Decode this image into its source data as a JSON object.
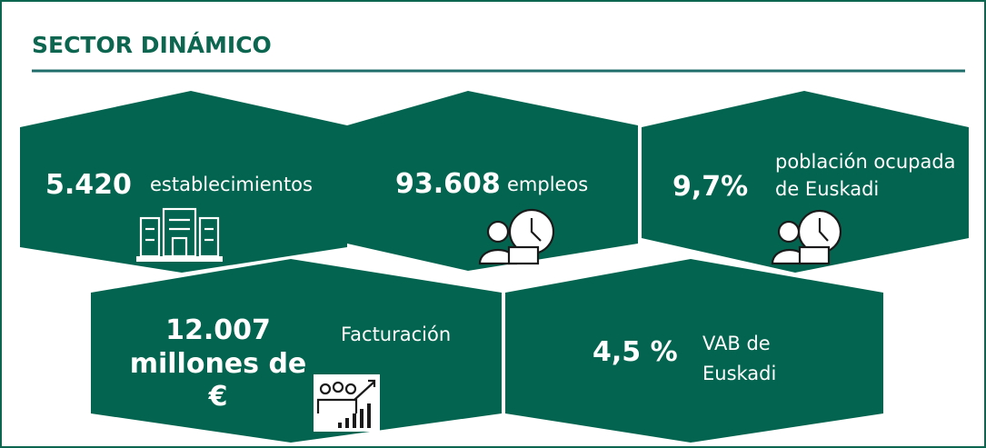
{
  "header": {
    "title": "SECTOR DINÁMICO"
  },
  "tiles": [
    {
      "value": [
        "5.420"
      ],
      "label": [
        "establecimientos"
      ]
    },
    {
      "value": [
        "93.608"
      ],
      "label": [
        "empleos"
      ]
    },
    {
      "value": [
        "9,7%"
      ],
      "label": [
        "población ocupada",
        "de Euskadi"
      ]
    },
    {
      "value": [
        "12.007",
        "millones de",
        "€"
      ],
      "label": [
        "Facturación"
      ]
    },
    {
      "value": [
        "4,5 %"
      ],
      "label": [
        "VAB de",
        "Euskadi"
      ]
    }
  ]
}
